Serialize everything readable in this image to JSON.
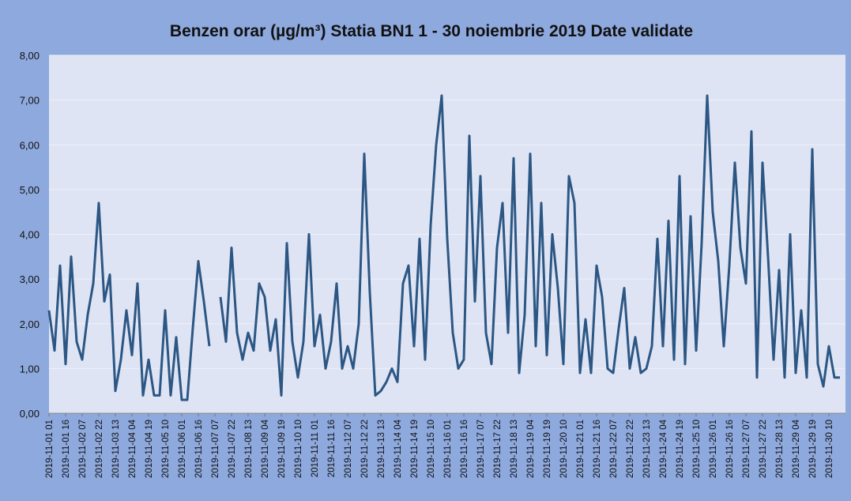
{
  "chart_data": {
    "type": "line",
    "title": "Benzen orar (µg/m³) Statia BN1 1 - 30 noiembrie 2019 Date validate",
    "categories": [
      "2019-11-01 01",
      null,
      null,
      "2019-11-01 16",
      null,
      null,
      "2019-11-02 07",
      null,
      null,
      "2019-11-02 22",
      null,
      null,
      "2019-11-03 13",
      null,
      null,
      "2019-11-04 04",
      null,
      null,
      "2019-11-04 19",
      null,
      null,
      "2019-11-05 10",
      null,
      null,
      "2019-11-06 01",
      null,
      null,
      "2019-11-06 16",
      null,
      null,
      "2019-11-07 07",
      null,
      null,
      "2019-11-07 22",
      null,
      null,
      "2019-11-08 13",
      null,
      null,
      "2019-11-09 04",
      null,
      null,
      "2019-11-09 19",
      null,
      null,
      "2019-11-10 10",
      null,
      null,
      "2019-11-11 01",
      null,
      null,
      "2019-11-11 16",
      null,
      null,
      "2019-11-12 07",
      null,
      null,
      "2019-11-12 22",
      null,
      null,
      "2019-11-13 13",
      null,
      null,
      "2019-11-14 04",
      null,
      null,
      "2019-11-14 19",
      null,
      null,
      "2019-11-15 10",
      null,
      null,
      "2019-11-16 01",
      null,
      null,
      "2019-11-16 16",
      null,
      null,
      "2019-11-17 07",
      null,
      null,
      "2019-11-17 22",
      null,
      null,
      "2019-11-18 13",
      null,
      null,
      "2019-11-19 04",
      null,
      null,
      "2019-11-19 19",
      null,
      null,
      "2019-11-20 10",
      null,
      null,
      "2019-11-21 01",
      null,
      null,
      "2019-11-21 16",
      null,
      null,
      "2019-11-22 07",
      null,
      null,
      "2019-11-22 22",
      null,
      null,
      "2019-11-23 13",
      null,
      null,
      "2019-11-24 04",
      null,
      null,
      "2019-11-24 19",
      null,
      null,
      "2019-11-25 10",
      null,
      null,
      "2019-11-26 01",
      null,
      null,
      "2019-11-26 16",
      null,
      null,
      "2019-11-27 07",
      null,
      null,
      "2019-11-27 22",
      null,
      null,
      "2019-11-28 13",
      null,
      null,
      "2019-11-29 04",
      null,
      null,
      "2019-11-29 19",
      null,
      null,
      "2019-11-30 10",
      null,
      null
    ],
    "series": [
      {
        "name": "Benzen",
        "color": "#2c5784",
        "values": [
          2.3,
          1.4,
          3.3,
          1.1,
          3.5,
          1.6,
          1.2,
          2.2,
          2.9,
          4.7,
          2.5,
          3.1,
          0.5,
          1.2,
          2.3,
          1.3,
          2.9,
          0.4,
          1.2,
          0.4,
          0.4,
          2.3,
          0.4,
          1.7,
          0.3,
          0.3,
          1.9,
          3.4,
          2.5,
          1.5,
          null,
          2.6,
          1.6,
          3.7,
          1.8,
          1.2,
          1.8,
          1.4,
          2.9,
          2.6,
          1.4,
          2.1,
          0.4,
          3.8,
          1.6,
          0.8,
          1.6,
          4.0,
          1.5,
          2.2,
          1.0,
          1.6,
          2.9,
          1.0,
          1.5,
          1.0,
          2.0,
          5.8,
          2.7,
          0.4,
          0.5,
          0.7,
          1.0,
          0.7,
          2.9,
          3.3,
          1.5,
          3.9,
          1.2,
          4.2,
          6.0,
          7.1,
          3.9,
          1.8,
          1.0,
          1.2,
          6.2,
          2.5,
          5.3,
          1.8,
          1.1,
          3.7,
          4.7,
          1.8,
          5.7,
          0.9,
          2.2,
          5.8,
          1.5,
          4.7,
          1.3,
          4.0,
          2.8,
          1.1,
          5.3,
          4.7,
          0.9,
          2.1,
          0.9,
          3.3,
          2.6,
          1.0,
          0.9,
          1.9,
          2.8,
          1.0,
          1.7,
          0.9,
          1.0,
          1.5,
          3.9,
          1.5,
          4.3,
          1.2,
          5.3,
          1.1,
          4.4,
          1.4,
          3.8,
          7.1,
          4.5,
          3.4,
          1.5,
          3.3,
          5.6,
          3.7,
          2.9,
          6.3,
          0.8,
          5.6,
          3.5,
          1.2,
          3.2,
          0.8,
          4.0,
          0.9,
          2.3,
          0.8,
          5.9,
          1.1,
          0.6,
          1.5,
          0.8,
          0.8
        ]
      }
    ],
    "ylim": [
      0,
      8
    ],
    "yticks": [
      {
        "value": 0,
        "label": "0,00"
      },
      {
        "value": 1,
        "label": "1,00"
      },
      {
        "value": 2,
        "label": "2,00"
      },
      {
        "value": 3,
        "label": "3,00"
      },
      {
        "value": 4,
        "label": "4,00"
      },
      {
        "value": 5,
        "label": "5,00"
      },
      {
        "value": 6,
        "label": "6,00"
      },
      {
        "value": 7,
        "label": "7,00"
      },
      {
        "value": 8,
        "label": "8,00"
      }
    ],
    "grid": true
  }
}
